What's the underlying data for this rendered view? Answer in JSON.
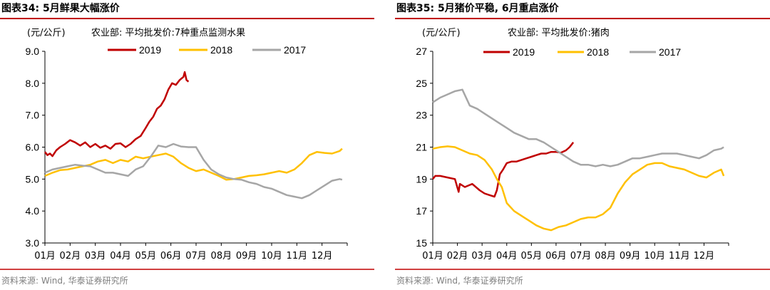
{
  "colors": {
    "rule": "#c00000",
    "s2019": "#c00000",
    "s2018": "#ffc000",
    "s2017": "#a6a6a6",
    "source": "#7f7f7f"
  },
  "chart_data": [
    {
      "type": "line",
      "title": "图表34:  5月鲜果大幅涨价",
      "unit_label": "(元/公斤)",
      "subtitle": "农业部: 平均批发价:7种重点监测水果",
      "source": "资料来源: Wind, 华泰证券研究所",
      "ylim": [
        3.0,
        9.0
      ],
      "yticks": [
        "3.0",
        "4.0",
        "5.0",
        "6.0",
        "7.0",
        "8.0",
        "9.0"
      ],
      "xticks": [
        "01月",
        "02月",
        "03月",
        "04月",
        "05月",
        "06月",
        "07月",
        "08月",
        "09月",
        "10月",
        "11月",
        "12月"
      ],
      "legend_position": "top-center",
      "series": [
        {
          "name": "2019",
          "color_key": "s2019",
          "x": [
            0.0,
            0.1,
            0.2,
            0.3,
            0.45,
            0.6,
            0.8,
            1.0,
            1.2,
            1.4,
            1.6,
            1.8,
            2.0,
            2.2,
            2.4,
            2.6,
            2.8,
            3.0,
            3.2,
            3.4,
            3.6,
            3.8,
            4.0,
            4.15,
            4.3,
            4.45,
            4.6,
            4.75,
            4.9,
            5.05,
            5.2,
            5.35,
            5.5,
            5.55,
            5.62,
            5.7
          ],
          "y": [
            5.85,
            5.75,
            5.8,
            5.72,
            5.9,
            6.0,
            6.1,
            6.22,
            6.15,
            6.05,
            6.15,
            6.0,
            6.1,
            5.98,
            6.05,
            5.95,
            6.1,
            6.12,
            6.0,
            6.1,
            6.25,
            6.35,
            6.6,
            6.8,
            6.95,
            7.2,
            7.3,
            7.5,
            7.8,
            8.0,
            7.95,
            8.1,
            8.2,
            8.35,
            8.1,
            8.05
          ]
        },
        {
          "name": "2018",
          "color_key": "s2018",
          "x": [
            0.0,
            0.3,
            0.6,
            0.9,
            1.2,
            1.5,
            1.8,
            2.1,
            2.4,
            2.7,
            3.0,
            3.3,
            3.6,
            3.9,
            4.2,
            4.5,
            4.8,
            5.1,
            5.4,
            5.7,
            6.0,
            6.3,
            6.6,
            6.9,
            7.2,
            7.5,
            7.8,
            8.1,
            8.4,
            8.7,
            9.0,
            9.3,
            9.6,
            9.9,
            10.2,
            10.5,
            10.8,
            11.1,
            11.4,
            11.7,
            11.8
          ],
          "y": [
            5.1,
            5.2,
            5.28,
            5.3,
            5.35,
            5.4,
            5.45,
            5.55,
            5.6,
            5.5,
            5.6,
            5.55,
            5.7,
            5.65,
            5.7,
            5.75,
            5.8,
            5.7,
            5.5,
            5.35,
            5.25,
            5.3,
            5.2,
            5.1,
            4.98,
            5.0,
            5.05,
            5.1,
            5.12,
            5.15,
            5.2,
            5.25,
            5.2,
            5.3,
            5.5,
            5.75,
            5.85,
            5.82,
            5.8,
            5.88,
            5.95
          ]
        },
        {
          "name": "2017",
          "color_key": "s2017",
          "x": [
            0.0,
            0.3,
            0.6,
            0.9,
            1.2,
            1.5,
            1.8,
            2.1,
            2.4,
            2.7,
            3.0,
            3.3,
            3.6,
            3.9,
            4.2,
            4.5,
            4.8,
            5.1,
            5.4,
            5.7,
            6.0,
            6.3,
            6.6,
            6.9,
            7.2,
            7.5,
            7.8,
            8.1,
            8.4,
            8.7,
            9.0,
            9.3,
            9.6,
            9.9,
            10.2,
            10.5,
            10.8,
            11.1,
            11.4,
            11.7,
            11.8
          ],
          "y": [
            5.2,
            5.3,
            5.35,
            5.4,
            5.45,
            5.42,
            5.4,
            5.3,
            5.2,
            5.2,
            5.15,
            5.1,
            5.3,
            5.4,
            5.7,
            6.05,
            6.0,
            6.1,
            6.02,
            6.0,
            6.0,
            5.6,
            5.3,
            5.15,
            5.05,
            5.0,
            4.98,
            4.9,
            4.85,
            4.75,
            4.7,
            4.6,
            4.5,
            4.45,
            4.4,
            4.5,
            4.65,
            4.8,
            4.95,
            5.0,
            4.98
          ]
        }
      ]
    },
    {
      "type": "line",
      "title": "图表35:  5月猪价平稳, 6月重启涨价",
      "unit_label": "(元/公斤)",
      "subtitle": "农业部: 平均批发价:猪肉",
      "source": "资料来源: Wind, 华泰证券研究所",
      "ylim": [
        15,
        27
      ],
      "yticks": [
        "15",
        "17",
        "19",
        "21",
        "23",
        "25",
        "27"
      ],
      "xticks": [
        "01月",
        "02月",
        "03月",
        "04月",
        "05月",
        "06月",
        "07月",
        "08月",
        "09月",
        "10月",
        "11月",
        "12月"
      ],
      "legend_position": "top-center",
      "series": [
        {
          "name": "2019",
          "color_key": "s2019",
          "x": [
            0.0,
            0.1,
            0.3,
            0.6,
            0.9,
            1.05,
            1.1,
            1.3,
            1.6,
            1.9,
            2.1,
            2.3,
            2.5,
            2.6,
            2.72,
            2.85,
            3.0,
            3.2,
            3.4,
            3.6,
            3.8,
            4.0,
            4.2,
            4.4,
            4.6,
            4.8,
            5.0,
            5.2,
            5.4,
            5.55,
            5.7
          ],
          "y": [
            19.0,
            19.2,
            19.2,
            19.1,
            19.0,
            18.2,
            18.7,
            18.5,
            18.7,
            18.3,
            18.1,
            18.0,
            17.9,
            18.3,
            19.3,
            19.6,
            20.0,
            20.1,
            20.1,
            20.2,
            20.3,
            20.4,
            20.5,
            20.6,
            20.6,
            20.7,
            20.7,
            20.65,
            20.8,
            21.0,
            21.3
          ]
        },
        {
          "name": "2018",
          "color_key": "s2018",
          "x": [
            0.0,
            0.3,
            0.6,
            0.9,
            1.2,
            1.5,
            1.8,
            2.1,
            2.4,
            2.6,
            2.8,
            3.0,
            3.3,
            3.6,
            3.9,
            4.2,
            4.5,
            4.8,
            5.1,
            5.4,
            5.7,
            6.0,
            6.3,
            6.6,
            6.9,
            7.2,
            7.5,
            7.8,
            8.1,
            8.4,
            8.7,
            9.0,
            9.3,
            9.6,
            9.9,
            10.2,
            10.5,
            10.8,
            11.1,
            11.4,
            11.7,
            11.8
          ],
          "y": [
            20.9,
            21.0,
            21.05,
            21.0,
            20.8,
            20.6,
            20.5,
            20.2,
            19.6,
            19.0,
            18.5,
            17.5,
            17.0,
            16.7,
            16.4,
            16.1,
            15.9,
            15.8,
            16.0,
            16.1,
            16.3,
            16.5,
            16.6,
            16.6,
            16.8,
            17.2,
            18.1,
            18.8,
            19.3,
            19.6,
            19.9,
            20.0,
            20.0,
            19.8,
            19.7,
            19.6,
            19.4,
            19.2,
            19.1,
            19.4,
            19.6,
            19.2
          ]
        },
        {
          "name": "2017",
          "color_key": "s2017",
          "x": [
            0.0,
            0.3,
            0.6,
            0.9,
            1.2,
            1.5,
            1.8,
            2.1,
            2.4,
            2.7,
            3.0,
            3.3,
            3.6,
            3.9,
            4.2,
            4.5,
            4.8,
            5.1,
            5.4,
            5.7,
            6.0,
            6.3,
            6.6,
            6.9,
            7.2,
            7.5,
            7.8,
            8.1,
            8.4,
            8.7,
            9.0,
            9.3,
            9.6,
            9.9,
            10.2,
            10.5,
            10.8,
            11.1,
            11.4,
            11.7,
            11.8
          ],
          "y": [
            23.8,
            24.1,
            24.3,
            24.5,
            24.6,
            23.6,
            23.4,
            23.1,
            22.8,
            22.5,
            22.2,
            21.9,
            21.7,
            21.5,
            21.5,
            21.3,
            21.0,
            20.7,
            20.4,
            20.1,
            19.9,
            19.9,
            19.8,
            19.9,
            19.8,
            19.9,
            20.1,
            20.3,
            20.3,
            20.4,
            20.5,
            20.6,
            20.6,
            20.6,
            20.5,
            20.4,
            20.3,
            20.5,
            20.8,
            20.9,
            21.0
          ]
        }
      ]
    }
  ]
}
